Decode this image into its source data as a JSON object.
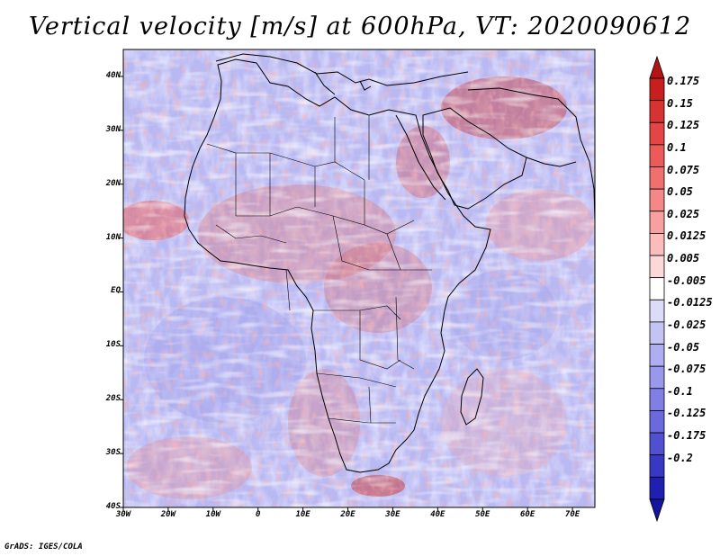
{
  "title": "Vertical velocity [m/s] at 600hPa, VT: 2020090612",
  "credit": "GrADS: IGES/COLA",
  "map": {
    "lat_labels": [
      "40N",
      "30N",
      "20N",
      "10N",
      "EQ",
      "10S",
      "20S",
      "30S",
      "40S"
    ],
    "lon_labels": [
      "30W",
      "20W",
      "10W",
      "0",
      "10E",
      "20E",
      "30E",
      "40E",
      "50E",
      "60E",
      "70E"
    ],
    "lon_range": [
      -30,
      75
    ],
    "lat_range": [
      -40,
      45
    ]
  },
  "colorbar": {
    "labels": [
      "0.175",
      "0.15",
      "0.125",
      "0.1",
      "0.075",
      "0.05",
      "0.025",
      "0.0125",
      "0.005",
      "-0.005",
      "-0.0125",
      "-0.025",
      "-0.05",
      "-0.075",
      "-0.1",
      "-0.125",
      "-0.175",
      "-0.2"
    ],
    "colors": [
      "#c81e1e",
      "#d83232",
      "#e44646",
      "#ec5a5a",
      "#f07070",
      "#f48888",
      "#f8a0a0",
      "#fbbcbc",
      "#fcd8d8",
      "#ffffff",
      "#dcdcf8",
      "#c4c4f4",
      "#aeaef0",
      "#9898ec",
      "#8080e4",
      "#6a6adc",
      "#5050d0",
      "#3838c4",
      "#2020b0"
    ],
    "top_arrow_color": "#b41414",
    "bottom_arrow_color": "#1414a0"
  }
}
